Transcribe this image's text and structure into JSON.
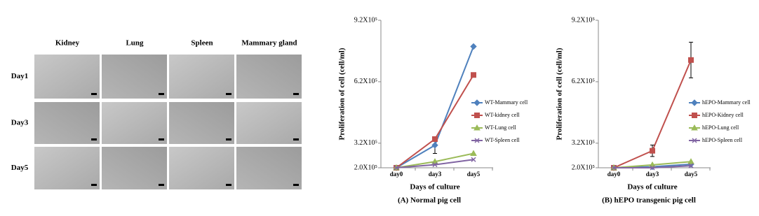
{
  "micrographs": {
    "columns": [
      "Kidney",
      "Lung",
      "Spleen",
      "Mammary gland"
    ],
    "rows": [
      "Day1",
      "Day3",
      "Day5"
    ]
  },
  "chart_data": [
    {
      "type": "line",
      "y_label": "Proliferation of cell (cell/ml)",
      "x_label": "Days of culture",
      "caption": "(A) Normal pig cell",
      "categories": [
        "day0",
        "day3",
        "day5"
      ],
      "ylim": [
        200000,
        920000
      ],
      "yticks": [
        {
          "value": 200000,
          "label": "2.0X10⁵"
        },
        {
          "value": 320000,
          "label": "3.2X10⁵"
        },
        {
          "value": 620000,
          "label": "6.2X10⁵"
        },
        {
          "value": 920000,
          "label": "9.2X10⁵"
        }
      ],
      "series": [
        {
          "name": "WT-Mammary cell",
          "color": "#4f81bd",
          "marker": "diamond",
          "values": [
            200000,
            310000,
            792000
          ],
          "errors": [
            null,
            40000,
            null
          ]
        },
        {
          "name": "WT-kidney cell",
          "color": "#c0504d",
          "marker": "square",
          "values": [
            200000,
            340000,
            653000
          ],
          "errors": [
            null,
            null,
            null
          ]
        },
        {
          "name": "WT-Lung cell",
          "color": "#9bbb59",
          "marker": "triangle",
          "values": [
            200000,
            230000,
            270000
          ],
          "errors": [
            null,
            null,
            null
          ]
        },
        {
          "name": "WT-Spleen cell",
          "color": "#8064a2",
          "marker": "x",
          "values": [
            200000,
            215000,
            240000
          ],
          "errors": [
            null,
            null,
            null
          ]
        }
      ]
    },
    {
      "type": "line",
      "y_label": "Proliferation of cell (cell/ml)",
      "x_label": "Days of culture",
      "caption": "(B) hEPO transgenic pig cell",
      "categories": [
        "day0",
        "day3",
        "day5"
      ],
      "ylim": [
        200000,
        920000
      ],
      "yticks": [
        {
          "value": 200000,
          "label": "2.0X10⁵"
        },
        {
          "value": 320000,
          "label": "3.2X10⁵"
        },
        {
          "value": 620000,
          "label": "6.2X10⁵"
        },
        {
          "value": 920000,
          "label": "9.2X10⁵"
        }
      ],
      "series": [
        {
          "name": "hEPO-Mammary cell",
          "color": "#4f81bd",
          "marker": "diamond",
          "values": [
            200000,
            205000,
            217000
          ],
          "errors": [
            null,
            null,
            null
          ]
        },
        {
          "name": "hEPO-Kidney cell",
          "color": "#c0504d",
          "marker": "square",
          "values": [
            200000,
            283000,
            726000
          ],
          "errors": [
            null,
            28000,
            87000
          ]
        },
        {
          "name": "hEPO-Lung cell",
          "color": "#9bbb59",
          "marker": "triangle",
          "values": [
            200000,
            214000,
            230000
          ],
          "errors": [
            null,
            null,
            null
          ]
        },
        {
          "name": "hEPO-Spleen cell",
          "color": "#8064a2",
          "marker": "x",
          "values": [
            200000,
            200000,
            210000
          ],
          "errors": [
            null,
            null,
            null
          ]
        }
      ]
    }
  ]
}
